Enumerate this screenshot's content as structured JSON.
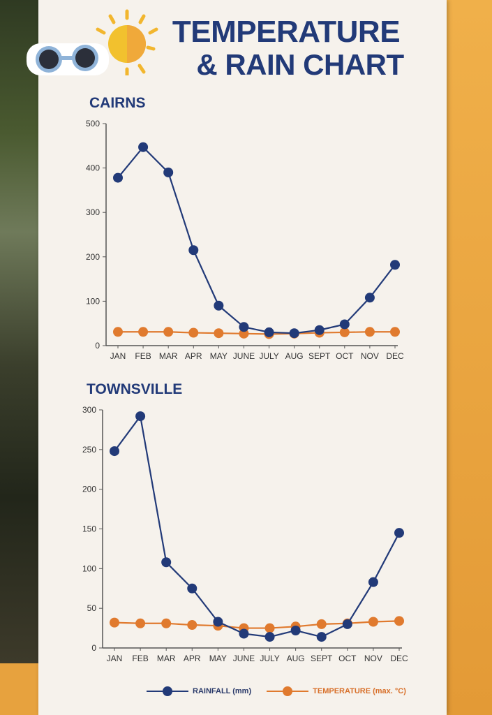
{
  "title": {
    "line1": "TEMPERATURE",
    "line2": "& RAIN CHART"
  },
  "legend": {
    "rainfall": "RAINFALL (mm)",
    "temperature": "TEMPERATURE (max. °C)"
  },
  "colors": {
    "rainfall": "#223a78",
    "temperature": "#e07a2e",
    "title": "#223a78"
  },
  "chart_data": [
    {
      "type": "line",
      "title": "CAIRNS",
      "categories": [
        "JAN",
        "FEB",
        "MAR",
        "APR",
        "MAY",
        "JUNE",
        "JULY",
        "AUG",
        "SEPT",
        "OCT",
        "NOV",
        "DEC"
      ],
      "ylim": [
        0,
        500
      ],
      "yticks": [
        0,
        100,
        200,
        300,
        400,
        500
      ],
      "series": [
        {
          "name": "RAINFALL (mm)",
          "values": [
            378,
            447,
            390,
            215,
            90,
            42,
            30,
            28,
            35,
            48,
            108,
            182
          ]
        },
        {
          "name": "TEMPERATURE (max. °C)",
          "values": [
            31,
            31,
            31,
            29,
            28,
            27,
            26,
            27,
            29,
            30,
            31,
            31
          ]
        }
      ]
    },
    {
      "type": "line",
      "title": "TOWNSVILLE",
      "categories": [
        "JAN",
        "FEB",
        "MAR",
        "APR",
        "MAY",
        "JUNE",
        "JULY",
        "AUG",
        "SEPT",
        "OCT",
        "NOV",
        "DEC"
      ],
      "ylim": [
        0,
        300
      ],
      "yticks": [
        0,
        50,
        100,
        150,
        200,
        250,
        300
      ],
      "series": [
        {
          "name": "RAINFALL (mm)",
          "values": [
            248,
            292,
            108,
            75,
            33,
            18,
            14,
            22,
            14,
            30,
            83,
            145
          ]
        },
        {
          "name": "TEMPERATURE (max. °C)",
          "values": [
            32,
            31,
            31,
            29,
            28,
            25,
            25,
            27,
            30,
            31,
            33,
            34
          ]
        }
      ]
    }
  ]
}
